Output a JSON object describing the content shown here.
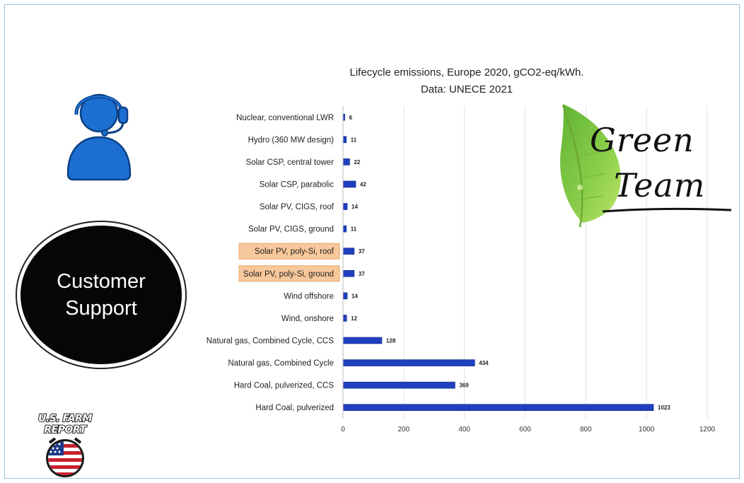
{
  "support": {
    "label_line1": "Customer",
    "label_line2": "Support",
    "icon": "headset-person-icon",
    "icon_color": "#1c6fd1"
  },
  "branding": {
    "green_team_line1": "Green",
    "green_team_line2": "Team",
    "leaf_icon": "leaf-icon",
    "farm_report_line1": "U.S. FARM",
    "farm_report_line2": "REPORT",
    "farm_report_icon": "us-flag-horseshoe-icon"
  },
  "chart_data": {
    "type": "bar",
    "orientation": "horizontal",
    "title": "Lifecycle emissions, Europe 2020, gCO2-eq/kWh.",
    "subtitle": "Data: UNECE 2021",
    "categories": [
      "Nuclear, conventional LWR",
      "Hydro (360 MW design)",
      "Solar CSP, central tower",
      "Solar CSP, parabolic",
      "Solar PV, CIGS, roof",
      "Solar PV, CIGS, ground",
      "Solar PV, poly-Si, roof",
      "Solar PV, poly-Si, ground",
      "Wind offshore",
      "Wind, onshore",
      "Natural gas, Combined Cycle, CCS",
      "Natural gas, Combined Cycle",
      "Hard Coal, pulverized, CCS",
      "Hard Coal, pulverized"
    ],
    "values": [
      6,
      11,
      22,
      42,
      14,
      11,
      37,
      37,
      14,
      12,
      128,
      434,
      369,
      1023
    ],
    "highlighted": [
      "Solar PV, poly-Si, roof",
      "Solar PV, poly-Si, ground"
    ],
    "xlim": [
      0,
      1200
    ],
    "xticks": [
      "0",
      "200",
      "400",
      "600",
      "800",
      "1000",
      "1200"
    ],
    "grid": true,
    "bar_color": "#1f3fbf",
    "highlight_color": "#f7c89b"
  }
}
